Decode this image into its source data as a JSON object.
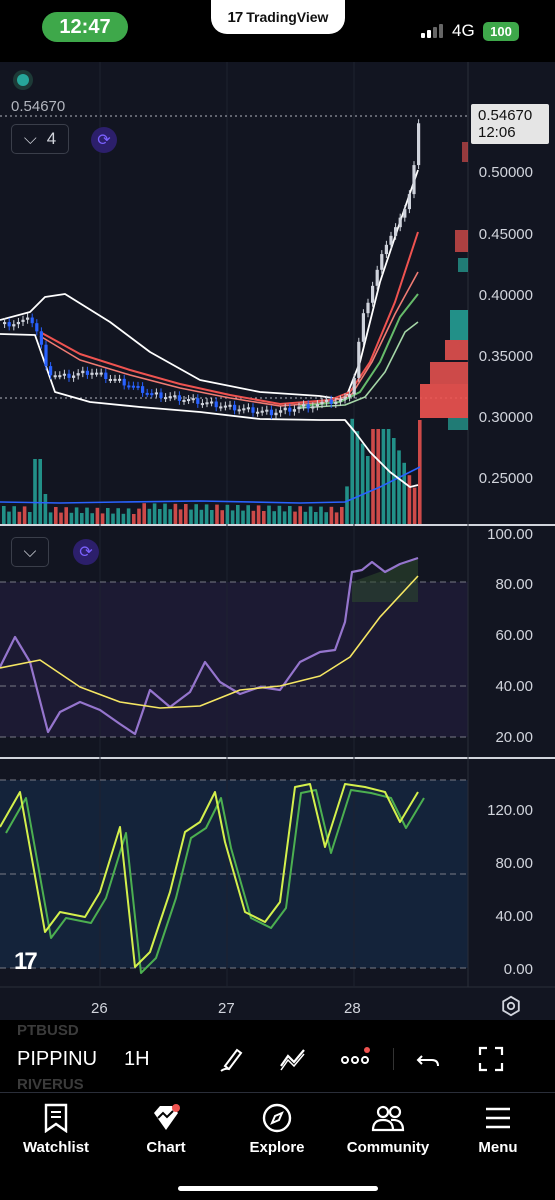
{
  "status_bar": {
    "time": "12:47",
    "app_title": "TradingView",
    "network": "4G",
    "battery": "100"
  },
  "chart": {
    "last_price": "0.54670",
    "countdown": "12:06",
    "indicator_count": "4",
    "price_axis": [
      "0.50000",
      "0.45000",
      "0.40000",
      "0.35000",
      "0.30000",
      "0.25000"
    ],
    "rsi_axis": [
      "100.00",
      "80.00",
      "60.00",
      "40.00",
      "20.00"
    ],
    "stoch_axis": [
      "120.00",
      "80.00",
      "40.00",
      "0.00"
    ],
    "date_axis": [
      "26",
      "27",
      "28"
    ],
    "colors": {
      "up": "#cfd3dc",
      "down": "#2962ff",
      "volume_up": "#26a69a",
      "volume_down": "#ef5350",
      "rsi": "#9575cd",
      "rsi_ma": "#f5e663",
      "stoch_k": "#d4f04c",
      "stoch_d": "#4caf50"
    }
  },
  "toolbar": {
    "ghost_top": "PTBUSD",
    "ghost_bottom": "RIVERUS",
    "symbol": "PIPPINU",
    "interval": "1H",
    "icons": [
      "brush-icon",
      "drawing-tools-icon",
      "more-icon",
      "undo-icon",
      "fullscreen-icon"
    ]
  },
  "nav": {
    "items": [
      {
        "label": "Watchlist",
        "icon": "bookmark-icon"
      },
      {
        "label": "Chart",
        "icon": "chart-icon"
      },
      {
        "label": "Explore",
        "icon": "compass-icon"
      },
      {
        "label": "Community",
        "icon": "community-icon"
      },
      {
        "label": "Menu",
        "icon": "menu-icon"
      }
    ]
  }
}
